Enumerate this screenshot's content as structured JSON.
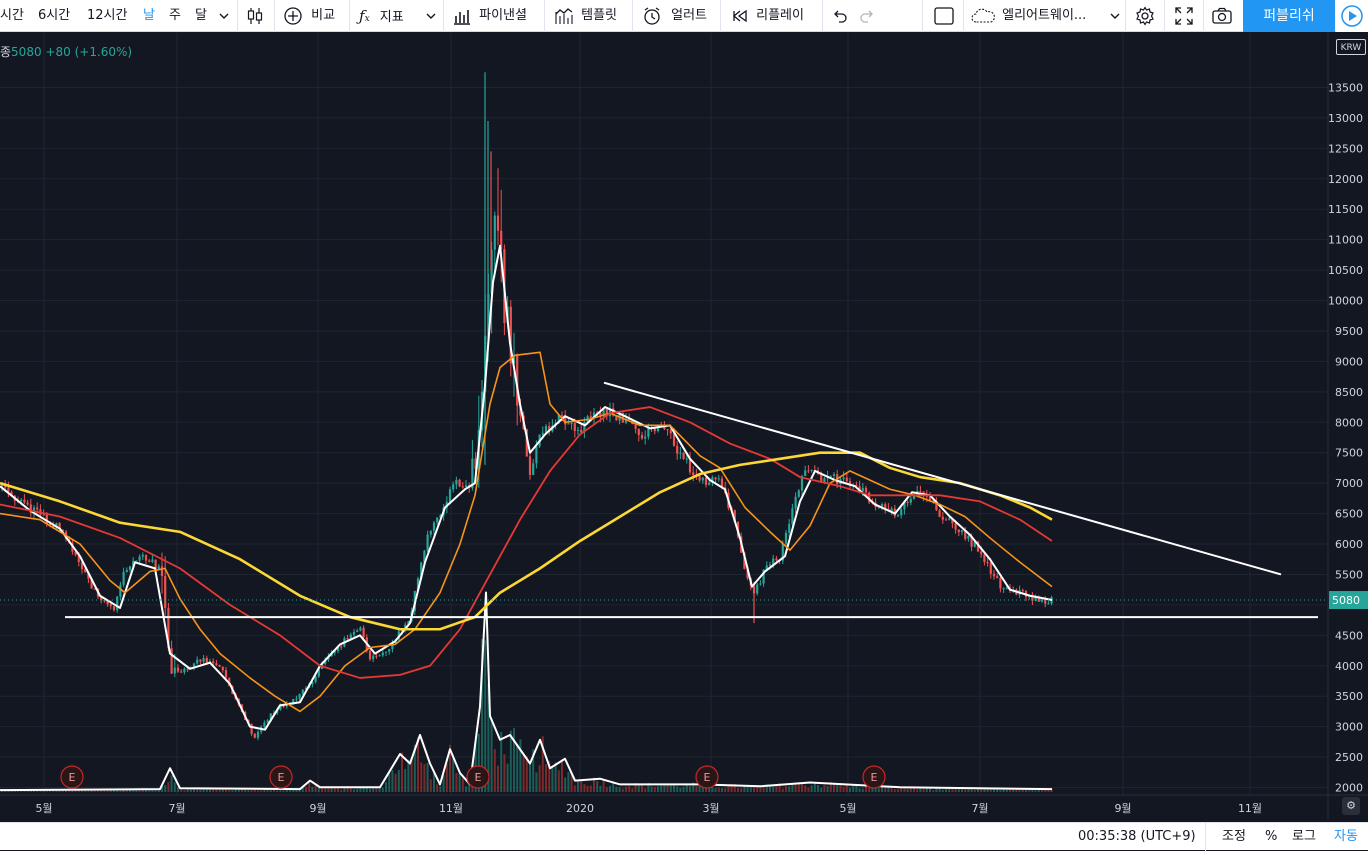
{
  "toolbar": {
    "intervals": [
      "시간",
      "6시간",
      "12시간",
      "날",
      "주",
      "달"
    ],
    "active_interval": "날",
    "compare_label": "비교",
    "indicators_label": "지표",
    "pine_editor_label": "파이낸셜",
    "template_label": "템플릿",
    "alert_label": "얼러트",
    "replay_label": "리플레이",
    "layout_name": "엘리어트웨이...",
    "publish_label": "퍼블리쉬"
  },
  "legend": {
    "prefix": "종",
    "close": "5080",
    "change": "+80",
    "change_pct": "(+1.60%)"
  },
  "currency": "KRW",
  "current_price_label": "5080",
  "colors": {
    "background": "#131722",
    "up": "#26a69a",
    "down": "#ef5350",
    "ma_fast": "#ffffff",
    "ma_20": "#f7931a",
    "ma_60": "#e53935",
    "ma_120": "#fdd835",
    "trendline": "#ffffff",
    "accent": "#2196f3"
  },
  "chart_data": {
    "type": "candlestick",
    "yticks": [
      "13500",
      "13000",
      "12500",
      "12000",
      "11500",
      "11000",
      "10500",
      "10000",
      "9500",
      "9000",
      "8500",
      "8000",
      "7500",
      "7000",
      "6500",
      "6000",
      "5500",
      "5000",
      "4500",
      "4000",
      "3500",
      "3000",
      "2500",
      "2000"
    ],
    "xticks": [
      "5월",
      "7월",
      "9월",
      "11월",
      "2020",
      "3월",
      "5월",
      "7월",
      "9월",
      "11월"
    ],
    "ylim": [
      1950,
      13750
    ],
    "close_path": [
      [
        0,
        6950
      ],
      [
        30,
        6600
      ],
      [
        60,
        6250
      ],
      [
        80,
        5700
      ],
      [
        100,
        5050
      ],
      [
        115,
        4950
      ],
      [
        125,
        5600
      ],
      [
        135,
        5800
      ],
      [
        150,
        5750
      ],
      [
        163,
        5500
      ],
      [
        170,
        3900
      ],
      [
        180,
        3900
      ],
      [
        200,
        4100
      ],
      [
        220,
        4000
      ],
      [
        240,
        3300
      ],
      [
        255,
        2800
      ],
      [
        270,
        3200
      ],
      [
        290,
        3400
      ],
      [
        305,
        3600
      ],
      [
        330,
        4200
      ],
      [
        350,
        4500
      ],
      [
        360,
        4600
      ],
      [
        370,
        4100
      ],
      [
        390,
        4300
      ],
      [
        410,
        4800
      ],
      [
        425,
        6000
      ],
      [
        440,
        6500
      ],
      [
        455,
        7000
      ],
      [
        470,
        6900
      ],
      [
        478,
        7500
      ],
      [
        485,
        9500
      ],
      [
        492,
        11000
      ],
      [
        500,
        10500
      ],
      [
        510,
        9000
      ],
      [
        520,
        8200
      ],
      [
        530,
        7200
      ],
      [
        540,
        7800
      ],
      [
        560,
        8100
      ],
      [
        580,
        7900
      ],
      [
        600,
        8200
      ],
      [
        620,
        8100
      ],
      [
        640,
        7800
      ],
      [
        660,
        8000
      ],
      [
        680,
        7500
      ],
      [
        700,
        7000
      ],
      [
        720,
        7100
      ],
      [
        735,
        6300
      ],
      [
        745,
        5500
      ],
      [
        755,
        5200
      ],
      [
        765,
        5600
      ],
      [
        780,
        5800
      ],
      [
        795,
        6700
      ],
      [
        805,
        7200
      ],
      [
        820,
        7100
      ],
      [
        840,
        7050
      ],
      [
        860,
        6900
      ],
      [
        880,
        6600
      ],
      [
        900,
        6500
      ],
      [
        915,
        6900
      ],
      [
        925,
        6850
      ],
      [
        940,
        6500
      ],
      [
        960,
        6200
      ],
      [
        980,
        5900
      ],
      [
        1000,
        5300
      ],
      [
        1020,
        5200
      ],
      [
        1040,
        5050
      ],
      [
        1052,
        5080
      ]
    ],
    "series": [
      {
        "name": "MA fast",
        "points": [
          [
            0,
            6950
          ],
          [
            30,
            6550
          ],
          [
            60,
            6250
          ],
          [
            80,
            5800
          ],
          [
            100,
            5150
          ],
          [
            120,
            4950
          ],
          [
            135,
            5700
          ],
          [
            155,
            5600
          ],
          [
            170,
            4200
          ],
          [
            190,
            3950
          ],
          [
            210,
            4050
          ],
          [
            230,
            3700
          ],
          [
            250,
            3000
          ],
          [
            265,
            2950
          ],
          [
            280,
            3350
          ],
          [
            300,
            3400
          ],
          [
            320,
            4000
          ],
          [
            340,
            4350
          ],
          [
            360,
            4500
          ],
          [
            375,
            4200
          ],
          [
            395,
            4400
          ],
          [
            410,
            4700
          ],
          [
            425,
            5700
          ],
          [
            445,
            6600
          ],
          [
            465,
            6900
          ],
          [
            475,
            7000
          ],
          [
            485,
            8600
          ],
          [
            493,
            10300
          ],
          [
            500,
            10900
          ],
          [
            510,
            9300
          ],
          [
            520,
            8300
          ],
          [
            530,
            7500
          ],
          [
            545,
            7800
          ],
          [
            565,
            8100
          ],
          [
            585,
            7950
          ],
          [
            605,
            8250
          ],
          [
            625,
            8100
          ],
          [
            650,
            7900
          ],
          [
            670,
            7950
          ],
          [
            690,
            7400
          ],
          [
            710,
            7050
          ],
          [
            725,
            6900
          ],
          [
            740,
            6100
          ],
          [
            752,
            5300
          ],
          [
            765,
            5550
          ],
          [
            785,
            5800
          ],
          [
            800,
            6700
          ],
          [
            815,
            7200
          ],
          [
            835,
            7050
          ],
          [
            855,
            6950
          ],
          [
            875,
            6650
          ],
          [
            895,
            6500
          ],
          [
            912,
            6850
          ],
          [
            930,
            6800
          ],
          [
            950,
            6450
          ],
          [
            970,
            6150
          ],
          [
            990,
            5750
          ],
          [
            1010,
            5250
          ],
          [
            1030,
            5150
          ],
          [
            1052,
            5080
          ]
        ]
      },
      {
        "name": "MA 20",
        "points": [
          [
            0,
            6500
          ],
          [
            40,
            6400
          ],
          [
            80,
            6000
          ],
          [
            110,
            5400
          ],
          [
            125,
            5200
          ],
          [
            150,
            5550
          ],
          [
            165,
            5600
          ],
          [
            180,
            5100
          ],
          [
            200,
            4600
          ],
          [
            220,
            4200
          ],
          [
            250,
            3800
          ],
          [
            275,
            3500
          ],
          [
            300,
            3250
          ],
          [
            320,
            3500
          ],
          [
            345,
            4000
          ],
          [
            370,
            4300
          ],
          [
            395,
            4350
          ],
          [
            415,
            4600
          ],
          [
            440,
            5200
          ],
          [
            460,
            6000
          ],
          [
            475,
            6800
          ],
          [
            490,
            8300
          ],
          [
            500,
            8900
          ],
          [
            515,
            9100
          ],
          [
            540,
            9150
          ],
          [
            550,
            8300
          ],
          [
            565,
            8000
          ],
          [
            590,
            8050
          ],
          [
            610,
            8150
          ],
          [
            640,
            7950
          ],
          [
            670,
            7950
          ],
          [
            700,
            7450
          ],
          [
            720,
            7250
          ],
          [
            745,
            6600
          ],
          [
            770,
            6200
          ],
          [
            790,
            5900
          ],
          [
            810,
            6300
          ],
          [
            830,
            7000
          ],
          [
            850,
            7200
          ],
          [
            870,
            7050
          ],
          [
            890,
            6900
          ],
          [
            915,
            6800
          ],
          [
            940,
            6650
          ],
          [
            965,
            6450
          ],
          [
            990,
            6100
          ],
          [
            1020,
            5700
          ],
          [
            1052,
            5300
          ]
        ]
      },
      {
        "name": "MA 60",
        "points": [
          [
            0,
            6650
          ],
          [
            60,
            6450
          ],
          [
            120,
            6100
          ],
          [
            180,
            5600
          ],
          [
            230,
            5000
          ],
          [
            280,
            4500
          ],
          [
            320,
            4000
          ],
          [
            360,
            3800
          ],
          [
            400,
            3850
          ],
          [
            430,
            4000
          ],
          [
            460,
            4600
          ],
          [
            490,
            5500
          ],
          [
            520,
            6400
          ],
          [
            550,
            7200
          ],
          [
            580,
            7800
          ],
          [
            610,
            8150
          ],
          [
            650,
            8250
          ],
          [
            690,
            8000
          ],
          [
            730,
            7650
          ],
          [
            770,
            7400
          ],
          [
            800,
            7100
          ],
          [
            840,
            6950
          ],
          [
            870,
            6800
          ],
          [
            900,
            6800
          ],
          [
            940,
            6800
          ],
          [
            980,
            6700
          ],
          [
            1020,
            6400
          ],
          [
            1052,
            6050
          ]
        ]
      },
      {
        "name": "MA 120",
        "points": [
          [
            0,
            7000
          ],
          [
            60,
            6700
          ],
          [
            120,
            6350
          ],
          [
            180,
            6200
          ],
          [
            240,
            5750
          ],
          [
            300,
            5150
          ],
          [
            350,
            4800
          ],
          [
            400,
            4600
          ],
          [
            440,
            4600
          ],
          [
            475,
            4800
          ],
          [
            500,
            5200
          ],
          [
            540,
            5600
          ],
          [
            580,
            6050
          ],
          [
            620,
            6450
          ],
          [
            660,
            6850
          ],
          [
            700,
            7150
          ],
          [
            740,
            7300
          ],
          [
            780,
            7400
          ],
          [
            820,
            7500
          ],
          [
            860,
            7500
          ],
          [
            890,
            7250
          ],
          [
            920,
            7100
          ],
          [
            960,
            7000
          ],
          [
            1000,
            6800
          ],
          [
            1030,
            6600
          ],
          [
            1052,
            6400
          ]
        ]
      }
    ],
    "volume_path": [
      [
        0,
        2
      ],
      [
        160,
        3
      ],
      [
        170,
        25
      ],
      [
        180,
        4
      ],
      [
        300,
        3
      ],
      [
        310,
        12
      ],
      [
        320,
        5
      ],
      [
        380,
        5
      ],
      [
        400,
        40
      ],
      [
        410,
        30
      ],
      [
        420,
        60
      ],
      [
        430,
        30
      ],
      [
        440,
        8
      ],
      [
        450,
        45
      ],
      [
        460,
        20
      ],
      [
        470,
        8
      ],
      [
        480,
        90
      ],
      [
        486,
        210
      ],
      [
        490,
        80
      ],
      [
        500,
        55
      ],
      [
        510,
        60
      ],
      [
        520,
        45
      ],
      [
        530,
        30
      ],
      [
        540,
        55
      ],
      [
        550,
        25
      ],
      [
        565,
        35
      ],
      [
        575,
        12
      ],
      [
        600,
        14
      ],
      [
        620,
        8
      ],
      [
        700,
        8
      ],
      [
        760,
        6
      ],
      [
        810,
        10
      ],
      [
        900,
        5
      ],
      [
        1052,
        3
      ]
    ],
    "earnings_markers": [
      72,
      281,
      478,
      707,
      874
    ],
    "support_line": {
      "price": 4800,
      "from_x": 65,
      "to_x": 1318
    },
    "trendline": {
      "from": [
        604,
        8650
      ],
      "to": [
        1281,
        5500
      ]
    },
    "last_price": 5080
  },
  "status": {
    "clock": "00:35:38 (UTC+9)",
    "adjust_label": "조정",
    "percent_label": "%",
    "log_label": "로그",
    "auto_label": "자동"
  }
}
